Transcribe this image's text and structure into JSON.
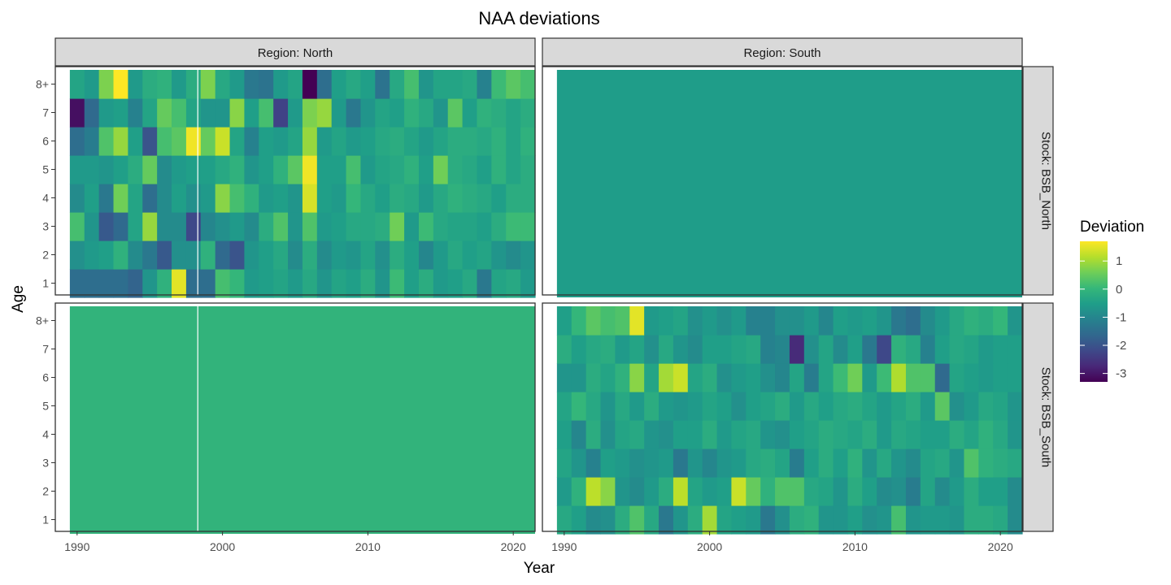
{
  "chart_data": {
    "type": "heatmap",
    "title": "NAA deviations",
    "xlabel": "Year",
    "ylabel": "Age",
    "years": [
      1990,
      1991,
      1992,
      1993,
      1994,
      1995,
      1996,
      1997,
      1998,
      1999,
      2000,
      2001,
      2002,
      2003,
      2004,
      2005,
      2006,
      2007,
      2008,
      2009,
      2010,
      2011,
      2012,
      2013,
      2014,
      2015,
      2016,
      2017,
      2018,
      2019,
      2020,
      2021
    ],
    "ages": [
      "1",
      "2",
      "3",
      "4",
      "5",
      "6",
      "7",
      "8+"
    ],
    "x_ticks": [
      1990,
      2000,
      2010,
      2020
    ],
    "xlim": [
      1988.5,
      2021.5
    ],
    "column_labels": [
      "Region: North",
      "Region: South"
    ],
    "row_labels": [
      "Stock: BSB_North",
      "Stock: BSB_South"
    ],
    "legend": {
      "title": "Deviation",
      "ticks": [
        1,
        0,
        -1,
        -2,
        -3
      ],
      "tick_labels": [
        "1",
        "0",
        "-1",
        "-2",
        "-3"
      ],
      "range": [
        -3.3,
        1.7
      ],
      "position": "right"
    },
    "panels": [
      {
        "row": "Stock: BSB_North",
        "col": "Region: North",
        "values": [
          [
            -1.5,
            -1.5,
            -1.5,
            -1.5,
            -1.7,
            -0.7,
            -0.1,
            1.5,
            -1.5,
            -1.5,
            0.2,
            0.0,
            -0.6,
            -0.5,
            -0.4,
            -0.6,
            -0.3,
            -0.7,
            -0.4,
            -0.5,
            -0.2,
            -0.7,
            0.1,
            -0.5,
            -0.2,
            -0.6,
            -0.5,
            -0.3,
            -1.3,
            -0.4,
            -0.3,
            -0.6
          ],
          [
            -0.8,
            -0.6,
            -0.5,
            -0.1,
            -0.9,
            -1.3,
            -1.9,
            -0.8,
            -0.8,
            -0.1,
            -1.6,
            -2.0,
            -0.7,
            -0.5,
            -0.3,
            -0.9,
            -0.2,
            -0.9,
            -0.6,
            -0.7,
            -0.4,
            -0.8,
            -0.2,
            -0.5,
            -1.0,
            -0.6,
            -0.3,
            -0.5,
            -0.4,
            -0.7,
            -0.9,
            -0.7
          ],
          [
            0.2,
            -0.7,
            -1.9,
            -1.6,
            -0.4,
            0.9,
            -0.9,
            -0.9,
            -2.2,
            -1.0,
            -0.8,
            -0.6,
            -0.9,
            -0.2,
            0.3,
            -0.7,
            0.3,
            -0.6,
            -0.5,
            -0.3,
            -0.3,
            -0.2,
            0.6,
            -0.6,
            0.1,
            -0.3,
            -0.4,
            -0.4,
            -0.5,
            -0.2,
            0.1,
            0.1
          ],
          [
            -0.9,
            -0.5,
            -1.3,
            0.6,
            -0.4,
            -1.5,
            -0.9,
            -0.5,
            -0.8,
            -0.6,
            0.8,
            0.2,
            -0.1,
            -0.6,
            -0.5,
            -0.7,
            1.4,
            -0.5,
            -0.6,
            0.0,
            -0.3,
            -0.5,
            -0.2,
            -0.3,
            -0.6,
            -0.3,
            -0.1,
            -0.2,
            -0.3,
            -0.5,
            -0.2,
            -0.2
          ],
          [
            -0.6,
            -0.6,
            -0.7,
            -0.5,
            -0.2,
            0.5,
            -0.9,
            -0.6,
            -0.5,
            -0.5,
            -0.3,
            -0.1,
            -0.7,
            -0.5,
            -0.1,
            0.4,
            1.6,
            -0.5,
            -0.5,
            0.2,
            -0.6,
            -0.4,
            -0.3,
            -0.1,
            -0.5,
            0.6,
            -0.2,
            -0.3,
            -0.5,
            -0.1,
            -0.4,
            -0.2
          ],
          [
            -1.5,
            -1.2,
            0.3,
            0.9,
            -0.5,
            -2.0,
            0.2,
            0.4,
            1.6,
            0.5,
            1.3,
            -0.4,
            -1.1,
            -0.5,
            -0.6,
            -0.4,
            0.9,
            -0.6,
            -0.4,
            -0.6,
            -0.5,
            -0.3,
            -0.2,
            -0.4,
            -0.6,
            -0.4,
            -0.2,
            -0.2,
            -0.3,
            -0.1,
            -0.4,
            -0.1
          ],
          [
            -3.1,
            -1.6,
            -0.6,
            -0.5,
            -1.1,
            -0.4,
            0.5,
            0.2,
            -0.4,
            -0.7,
            -0.7,
            0.8,
            -0.5,
            0.2,
            -2.3,
            -0.6,
            0.7,
            0.9,
            -0.6,
            -1.3,
            -0.7,
            -0.4,
            -0.5,
            -0.1,
            -0.3,
            -0.7,
            0.4,
            -0.5,
            -0.1,
            -0.2,
            -0.4,
            -0.2
          ],
          [
            -0.4,
            -0.6,
            0.7,
            1.7,
            -0.6,
            -0.2,
            -0.1,
            -0.6,
            -0.2,
            0.7,
            -0.3,
            -0.6,
            -1.3,
            -1.4,
            -0.6,
            -0.4,
            -3.3,
            -1.5,
            -0.5,
            -0.3,
            -0.5,
            -1.4,
            -0.3,
            0.2,
            -0.7,
            -0.4,
            -0.4,
            -0.3,
            -1.1,
            0.1,
            0.4,
            0.2
          ]
        ]
      },
      {
        "row": "Stock: BSB_North",
        "col": "Region: South",
        "constant_value": -0.55
      },
      {
        "row": "Stock: BSB_South",
        "col": "Region: North",
        "constant_value": -0.05
      },
      {
        "row": "Stock: BSB_South",
        "col": "Region: South",
        "values": [
          [
            -0.3,
            -0.5,
            -0.9,
            -0.8,
            -0.2,
            0.3,
            -0.3,
            -1.3,
            -0.7,
            -0.2,
            1.0,
            -0.4,
            -0.5,
            -0.6,
            -1.3,
            -0.8,
            -0.2,
            -0.1,
            -0.7,
            -0.7,
            -0.5,
            -0.8,
            -0.7,
            0.2,
            -0.7,
            -0.6,
            -0.6,
            -0.7,
            -0.2,
            -0.2,
            -0.3,
            -0.9
          ],
          [
            -0.6,
            -0.1,
            1.2,
            0.8,
            -0.7,
            -0.9,
            -0.6,
            -0.2,
            1.2,
            -0.4,
            -0.6,
            -0.5,
            1.3,
            0.5,
            -0.1,
            0.3,
            0.3,
            -0.3,
            -0.4,
            -0.7,
            -0.2,
            -0.5,
            -0.9,
            -0.8,
            -1.2,
            -0.4,
            -0.9,
            -0.6,
            -0.2,
            -0.5,
            -0.5,
            -0.9
          ],
          [
            -0.4,
            -0.7,
            -1.1,
            -0.5,
            -0.6,
            -0.8,
            -0.7,
            -0.6,
            -1.3,
            -0.7,
            -1.0,
            -0.7,
            -0.6,
            -0.3,
            -0.2,
            -0.4,
            -1.2,
            -0.5,
            -0.2,
            -0.5,
            -0.1,
            -0.7,
            -0.3,
            -0.7,
            -0.9,
            -0.4,
            -0.3,
            -0.7,
            0.3,
            -0.1,
            -0.2,
            -0.3
          ],
          [
            -0.5,
            -1.0,
            -0.2,
            -0.8,
            -0.4,
            -0.3,
            -0.7,
            -0.8,
            -0.5,
            -0.5,
            -0.2,
            -0.6,
            -0.4,
            -0.3,
            -0.7,
            -0.8,
            -0.5,
            -0.4,
            -0.2,
            -0.3,
            -0.4,
            -0.2,
            -0.6,
            -0.3,
            -0.4,
            -0.5,
            -0.5,
            -0.2,
            -0.4,
            -0.1,
            -0.3,
            -0.7
          ],
          [
            -0.4,
            0.0,
            -0.3,
            -0.7,
            -0.3,
            -0.6,
            -0.2,
            -0.6,
            -0.7,
            -0.6,
            -0.4,
            -0.5,
            -0.8,
            -0.5,
            -0.4,
            -0.2,
            -0.6,
            -0.3,
            -0.5,
            -0.3,
            -0.2,
            -0.4,
            -0.6,
            -0.4,
            -0.2,
            -0.6,
            0.4,
            -0.8,
            -0.6,
            -0.3,
            -0.4,
            -0.7
          ],
          [
            -0.7,
            -0.7,
            -0.2,
            -0.4,
            -0.1,
            0.8,
            -0.4,
            1.0,
            1.3,
            -0.4,
            -0.2,
            -0.8,
            -0.6,
            -0.5,
            -0.8,
            -1.0,
            -0.4,
            -1.2,
            -0.4,
            0.1,
            0.6,
            -0.6,
            0.1,
            1.1,
            0.3,
            0.3,
            -1.6,
            -0.4,
            -0.5,
            -0.6,
            -0.5,
            -0.5
          ],
          [
            -0.2,
            -0.5,
            -0.3,
            -0.2,
            -0.6,
            -0.4,
            -0.8,
            -0.3,
            -0.7,
            -0.9,
            -0.5,
            -0.5,
            -0.4,
            -0.3,
            -1.1,
            -1.0,
            -2.7,
            -0.8,
            -0.4,
            -0.9,
            -0.5,
            -1.3,
            -2.2,
            -0.1,
            -0.3,
            -1.1,
            -0.5,
            -0.3,
            -0.4,
            -0.6,
            -0.5,
            -0.5
          ],
          [
            -0.5,
            0.0,
            0.4,
            0.2,
            0.3,
            1.5,
            -0.6,
            -0.5,
            -0.4,
            -0.8,
            -0.6,
            -0.8,
            -0.6,
            -1.1,
            -1.1,
            -0.8,
            -0.8,
            -0.6,
            -1.0,
            -0.5,
            -0.6,
            -0.5,
            -0.7,
            -1.3,
            -1.5,
            -0.9,
            -0.6,
            -0.3,
            -0.1,
            -0.2,
            0.0,
            -0.7
          ]
        ]
      }
    ]
  }
}
